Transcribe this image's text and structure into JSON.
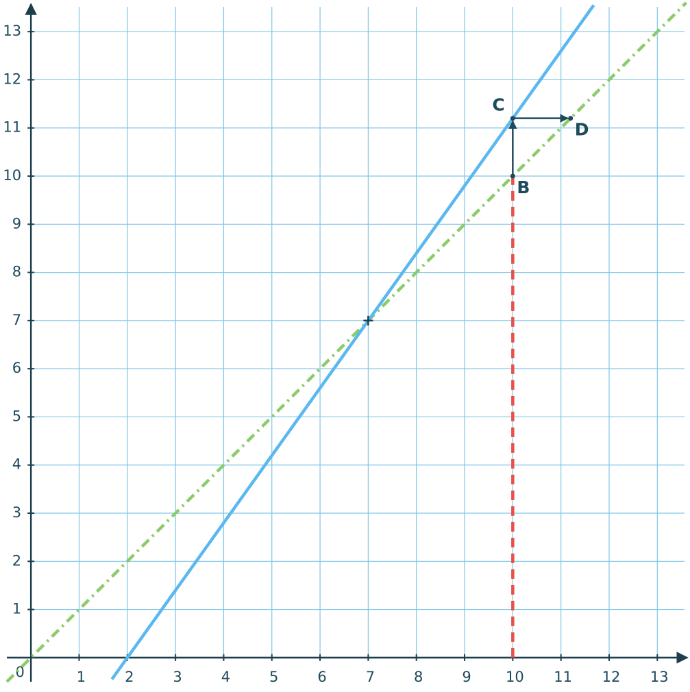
{
  "chart_data": {
    "type": "line",
    "xlim": [
      -0.5,
      13.65
    ],
    "ylim": [
      -0.5,
      13.6
    ],
    "xticks": [
      0,
      1,
      2,
      3,
      4,
      5,
      6,
      7,
      8,
      9,
      10,
      11,
      12,
      13
    ],
    "yticks": [
      1,
      2,
      3,
      4,
      5,
      6,
      7,
      8,
      9,
      10,
      11,
      12,
      13
    ],
    "grid": true,
    "grid_color": "#7fc6e6",
    "axis_color": "#1d3e4c",
    "lines": [
      {
        "color": "#8acb6a",
        "style": "dashdot",
        "x": [
          -0.5,
          13.6
        ],
        "y": [
          -0.5,
          13.6
        ]
      },
      {
        "color": "#5ab8f0",
        "style": "solid",
        "x": [
          1.68,
          11.68
        ],
        "y": [
          -0.45,
          13.55
        ]
      },
      {
        "color": "#e8504c",
        "style": "dashed",
        "x": [
          10,
          10
        ],
        "y": [
          0,
          10
        ]
      }
    ],
    "cross": {
      "x": 7,
      "y": 7
    },
    "points": [
      {
        "label": "B",
        "x": 10,
        "y": 10
      },
      {
        "label": "C",
        "x": 10,
        "y": 11.2
      },
      {
        "label": "D",
        "x": 11.2,
        "y": 11.2
      }
    ]
  }
}
